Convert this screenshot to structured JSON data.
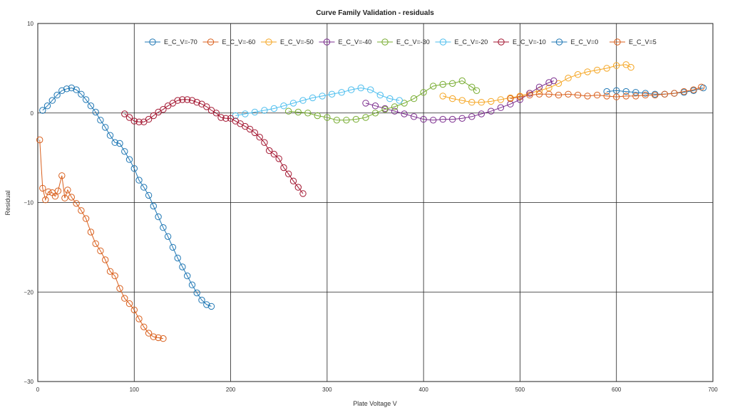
{
  "chart_data": {
    "type": "line",
    "title": "Curve Family Validation - residuals",
    "xlabel": "Plate Voltage V",
    "ylabel": "Residual",
    "xlim": [
      0,
      700
    ],
    "ylim": [
      -30,
      10
    ],
    "xticks": [
      0,
      100,
      200,
      300,
      400,
      500,
      600,
      700
    ],
    "yticks": [
      -30,
      -20,
      -10,
      0,
      10
    ],
    "grid": true,
    "legend_position": "top",
    "series": [
      {
        "name": "E_C_V=-70",
        "color": "#1f77b4",
        "x": [
          5,
          10,
          15,
          20,
          25,
          30,
          35,
          40,
          45,
          50,
          55,
          60,
          65,
          70,
          75,
          80,
          85,
          90,
          95,
          100,
          105,
          110,
          115,
          120,
          125,
          130,
          135,
          140,
          145,
          150,
          155,
          160,
          165,
          170,
          175,
          180
        ],
        "y": [
          0.3,
          0.8,
          1.4,
          2.0,
          2.5,
          2.7,
          2.8,
          2.6,
          2.1,
          1.5,
          0.8,
          0.1,
          -0.8,
          -1.6,
          -2.5,
          -3.3,
          -3.4,
          -4.3,
          -5.2,
          -6.2,
          -7.5,
          -8.3,
          -9.2,
          -10.4,
          -11.6,
          -12.8,
          -13.8,
          -15.0,
          -16.2,
          -17.2,
          -18.2,
          -19.2,
          -20.1,
          -20.9,
          -21.4,
          -21.6
        ]
      },
      {
        "name": "E_C_V=-60",
        "color": "#d95f1c",
        "x": [
          2,
          5,
          8,
          11,
          15,
          18,
          21,
          25,
          28,
          31,
          35,
          40,
          45,
          50,
          55,
          60,
          65,
          70,
          75,
          80,
          85,
          90,
          95,
          100,
          105,
          110,
          115,
          120,
          125,
          130
        ],
        "y": [
          -3.0,
          -8.4,
          -9.7,
          -8.8,
          -8.9,
          -9.3,
          -8.7,
          -7.0,
          -9.5,
          -8.6,
          -9.4,
          -10.1,
          -10.9,
          -11.8,
          -13.3,
          -14.6,
          -15.4,
          -16.4,
          -17.7,
          -18.2,
          -19.6,
          -20.7,
          -21.3,
          -22.0,
          -23.0,
          -23.9,
          -24.6,
          -25.0,
          -25.1,
          -25.2
        ]
      },
      {
        "name": "E_C_V=-50",
        "color": "#f5a623",
        "x": [
          420,
          430,
          440,
          450,
          460,
          470,
          480,
          490,
          500,
          510,
          520,
          530,
          540,
          550,
          560,
          570,
          580,
          590,
          600,
          610,
          615
        ],
        "y": [
          1.9,
          1.6,
          1.4,
          1.2,
          1.2,
          1.3,
          1.5,
          1.7,
          1.9,
          2.2,
          2.5,
          2.8,
          3.3,
          3.9,
          4.3,
          4.6,
          4.8,
          5.0,
          5.3,
          5.4,
          5.1
        ]
      },
      {
        "name": "E_C_V=-40",
        "color": "#7b2d8e",
        "x": [
          340,
          350,
          360,
          370,
          380,
          390,
          400,
          410,
          420,
          430,
          440,
          450,
          460,
          470,
          480,
          490,
          500,
          510,
          520,
          530,
          535
        ],
        "y": [
          1.1,
          0.8,
          0.5,
          0.2,
          -0.1,
          -0.4,
          -0.7,
          -0.8,
          -0.7,
          -0.7,
          -0.6,
          -0.4,
          -0.1,
          0.2,
          0.6,
          1.0,
          1.5,
          2.2,
          2.9,
          3.4,
          3.6
        ]
      },
      {
        "name": "E_C_V=-30",
        "color": "#77ac30",
        "x": [
          260,
          270,
          280,
          290,
          300,
          310,
          320,
          330,
          340,
          350,
          360,
          370,
          380,
          390,
          400,
          410,
          420,
          430,
          440,
          450,
          455
        ],
        "y": [
          0.2,
          0.1,
          0.0,
          -0.3,
          -0.5,
          -0.8,
          -0.8,
          -0.7,
          -0.5,
          0.0,
          0.4,
          0.7,
          1.1,
          1.6,
          2.3,
          3.0,
          3.2,
          3.3,
          3.6,
          2.9,
          2.5
        ]
      },
      {
        "name": "E_C_V=-20",
        "color": "#4dbeee",
        "x": [
          205,
          215,
          225,
          235,
          245,
          255,
          265,
          275,
          285,
          295,
          305,
          315,
          325,
          335,
          345,
          355,
          365,
          375
        ],
        "y": [
          -0.3,
          -0.1,
          0.1,
          0.3,
          0.5,
          0.8,
          1.1,
          1.4,
          1.7,
          1.9,
          2.1,
          2.3,
          2.6,
          2.8,
          2.6,
          2.0,
          1.6,
          1.4
        ]
      },
      {
        "name": "E_C_V=-10",
        "color": "#a2142f",
        "x": [
          90,
          95,
          100,
          105,
          110,
          115,
          120,
          125,
          130,
          135,
          140,
          145,
          150,
          155,
          160,
          165,
          170,
          175,
          180,
          185,
          190,
          195,
          200,
          205,
          210,
          215,
          220,
          225,
          230,
          235,
          240,
          245,
          250,
          255,
          260,
          265,
          270,
          275
        ],
        "y": [
          -0.1,
          -0.5,
          -0.9,
          -1.0,
          -1.0,
          -0.7,
          -0.3,
          0.1,
          0.4,
          0.8,
          1.1,
          1.4,
          1.5,
          1.5,
          1.4,
          1.2,
          1.0,
          0.7,
          0.3,
          0.0,
          -0.5,
          -0.6,
          -0.6,
          -0.9,
          -1.2,
          -1.5,
          -1.8,
          -2.2,
          -2.7,
          -3.3,
          -4.2,
          -4.6,
          -5.1,
          -6.1,
          -6.8,
          -7.6,
          -8.3,
          -9.0
        ]
      },
      {
        "name": "E_C_V=0",
        "color": "#1f77b4",
        "x": [
          590,
          600,
          610,
          620,
          630,
          640,
          650,
          660,
          670,
          680,
          690
        ],
        "y": [
          2.4,
          2.5,
          2.4,
          2.3,
          2.2,
          2.1,
          2.1,
          2.2,
          2.3,
          2.5,
          2.8
        ]
      },
      {
        "name": "E_C_V=5",
        "color": "#d95f1c",
        "x": [
          490,
          500,
          510,
          520,
          530,
          540,
          550,
          560,
          570,
          580,
          590,
          600,
          610,
          620,
          630,
          640,
          650,
          660,
          670,
          680,
          688
        ],
        "y": [
          1.6,
          1.8,
          2.0,
          2.1,
          2.1,
          2.0,
          2.1,
          2.0,
          1.9,
          2.0,
          1.9,
          1.8,
          1.9,
          1.9,
          2.0,
          2.0,
          2.1,
          2.2,
          2.4,
          2.6,
          2.9
        ]
      }
    ]
  }
}
